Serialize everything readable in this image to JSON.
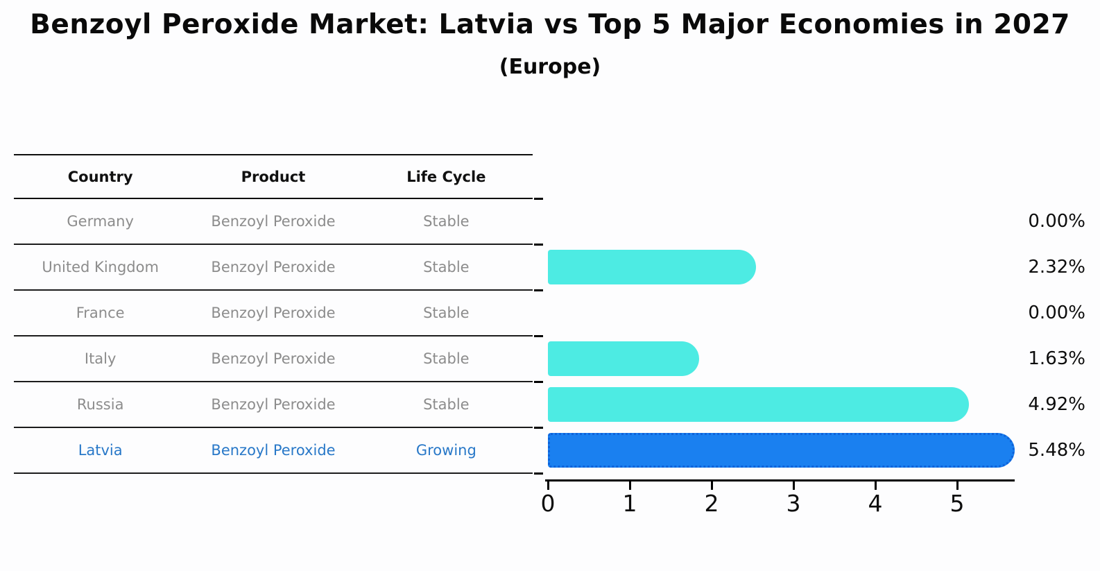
{
  "page": {
    "title": "Benzoyl Peroxide Market: Latvia vs Top 5 Major Economies in 2027",
    "subtitle": "(Europe)"
  },
  "table": {
    "headers": [
      "Country",
      "Product",
      "Life Cycle"
    ],
    "rows": [
      {
        "country": "Germany",
        "product": "Benzoyl Peroxide",
        "life_cycle": "Stable",
        "highlighted": false
      },
      {
        "country": "United Kingdom",
        "product": "Benzoyl Peroxide",
        "life_cycle": "Stable",
        "highlighted": false
      },
      {
        "country": "France",
        "product": "Benzoyl Peroxide",
        "life_cycle": "Stable",
        "highlighted": false
      },
      {
        "country": "Italy",
        "product": "Benzoyl Peroxide",
        "life_cycle": "Stable",
        "highlighted": false
      },
      {
        "country": "Russia",
        "product": "Benzoyl Peroxide",
        "life_cycle": "Stable",
        "highlighted": false
      },
      {
        "country": "Latvia",
        "product": "Benzoyl Peroxide",
        "life_cycle": "Growing",
        "highlighted": true
      }
    ]
  },
  "chart_data": {
    "type": "bar",
    "orientation": "horizontal",
    "title": "Benzoyl Peroxide Market: Latvia vs Top 5 Major Economies in 2027 (Europe)",
    "categories": [
      "Germany",
      "United Kingdom",
      "France",
      "Italy",
      "Russia",
      "Latvia"
    ],
    "values": [
      0.0,
      2.32,
      0.0,
      1.63,
      4.92,
      5.48
    ],
    "value_labels": [
      "0.00%",
      "2.32%",
      "0.00%",
      "1.63%",
      "4.92%",
      "5.48%"
    ],
    "x_ticks": [
      0,
      1,
      2,
      3,
      4,
      5
    ],
    "xlim": [
      0,
      5.7
    ],
    "xlabel": "",
    "ylabel": "",
    "grid": false,
    "legend": false,
    "colors": {
      "bar": "#4debe3",
      "highlight_bar": "#1a80f0",
      "highlight_border": "#0e62d9",
      "highlight_text": "#2878c8",
      "row_text": "#8c8c8c",
      "axis": "#000000",
      "label_text": "#0d0d0d"
    }
  }
}
